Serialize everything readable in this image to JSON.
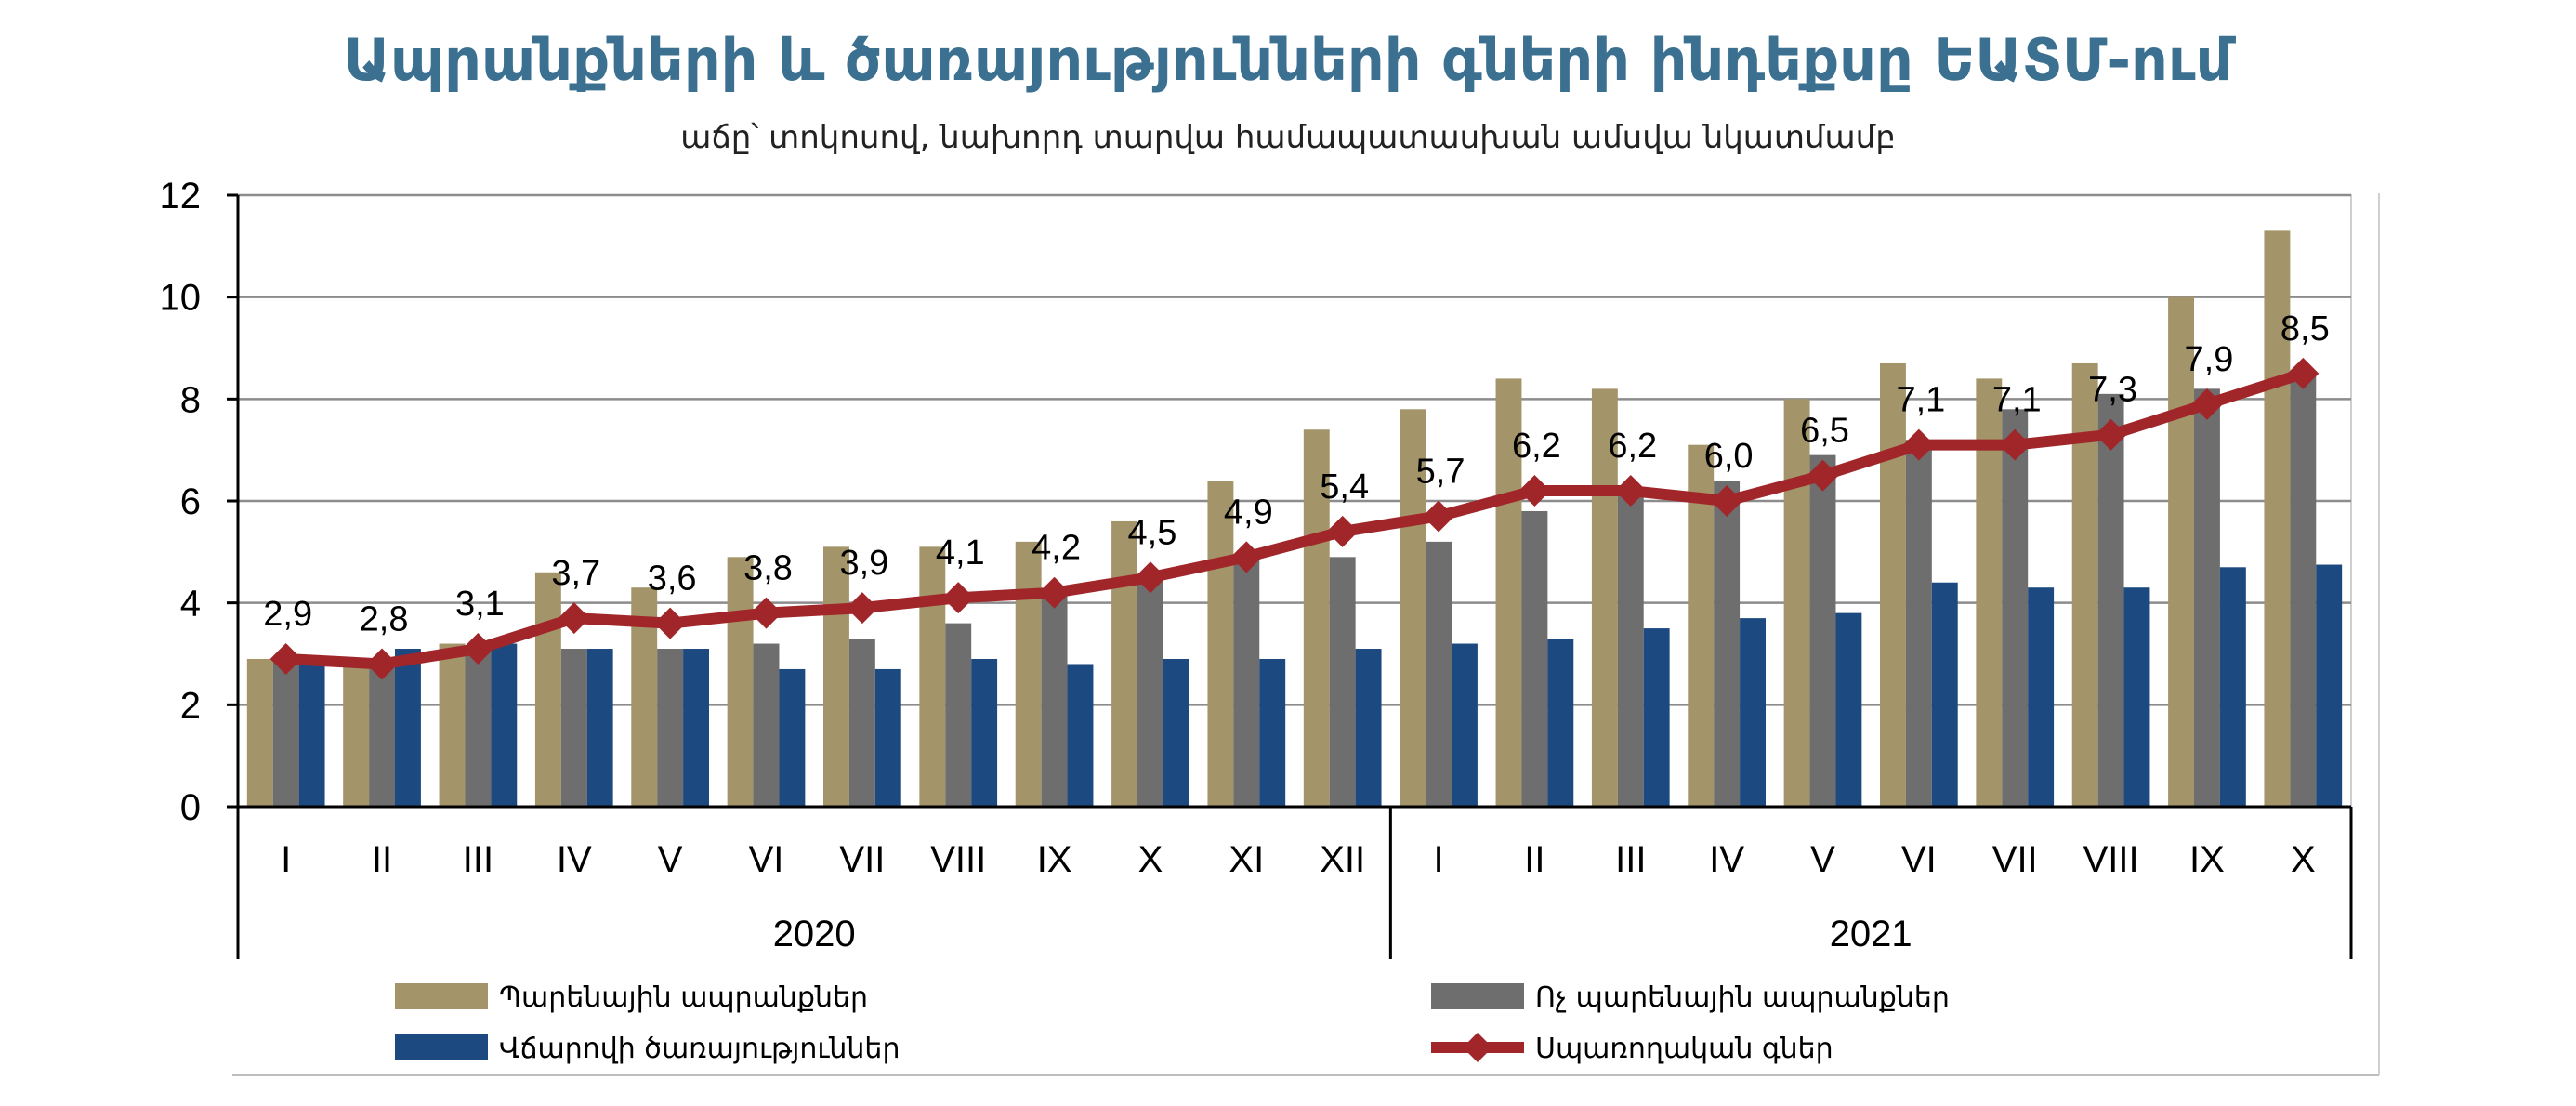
{
  "chart_data": {
    "type": "bar",
    "title": "Ապրանքների և ծառայությունների գների ինդեքսը ԵԱՏՄ-ում",
    "subtitle": "աճը՝ տոկոսով, նախորդ տարվա համապատասխան ամսվա նկատմամբ",
    "categories": [
      "I",
      "II",
      "III",
      "IV",
      "V",
      "VI",
      "VII",
      "VIII",
      "IX",
      "X",
      "XI",
      "XII",
      "I",
      "II",
      "III",
      "IV",
      "V",
      "VI",
      "VII",
      "VIII",
      "IX",
      "X"
    ],
    "years": [
      {
        "label": "2020",
        "count": 12
      },
      {
        "label": "2021",
        "count": 10
      }
    ],
    "ylim": [
      0,
      12
    ],
    "yticks": [
      0,
      2,
      4,
      6,
      8,
      10,
      12
    ],
    "grid": true,
    "legend_position": "bottom",
    "series": [
      {
        "name": "Պարենային ապրանքներ",
        "kind": "bar",
        "color": "#a39469",
        "values": [
          2.9,
          2.8,
          3.2,
          4.6,
          4.3,
          4.9,
          5.1,
          5.1,
          5.2,
          5.6,
          6.4,
          7.4,
          7.8,
          8.4,
          8.2,
          7.1,
          8.0,
          8.7,
          8.4,
          8.7,
          10.0,
          11.3
        ]
      },
      {
        "name": "Ոչ պարենային ապրանքներ",
        "kind": "bar",
        "color": "#6e6e6e",
        "values": [
          2.9,
          2.8,
          3.1,
          3.1,
          3.1,
          3.2,
          3.3,
          3.6,
          4.2,
          4.5,
          4.9,
          4.9,
          5.2,
          5.8,
          6.2,
          6.4,
          6.9,
          7.2,
          7.8,
          8.1,
          8.2,
          8.5
        ]
      },
      {
        "name": "Վճարովի ծառայություններ",
        "kind": "bar",
        "color": "#1c4a80",
        "values": [
          2.8,
          3.1,
          3.2,
          3.1,
          3.1,
          2.7,
          2.7,
          2.9,
          2.8,
          2.9,
          2.9,
          3.1,
          3.2,
          3.3,
          3.5,
          3.7,
          3.8,
          4.4,
          4.3,
          4.3,
          4.7,
          4.75
        ]
      },
      {
        "name": "Սպառողական գներ",
        "kind": "line",
        "color": "#a1262a",
        "values": [
          2.9,
          2.8,
          3.1,
          3.7,
          3.6,
          3.8,
          3.9,
          4.1,
          4.2,
          4.5,
          4.9,
          5.4,
          5.7,
          6.2,
          6.2,
          6.0,
          6.5,
          7.1,
          7.1,
          7.3,
          7.9,
          8.5
        ],
        "labels": [
          "2,9",
          "2,8",
          "3,1",
          "3,7",
          "3,6",
          "3,8",
          "3,9",
          "4,1",
          "4,2",
          "4,5",
          "4,9",
          "5,4",
          "5,7",
          "6,2",
          "6,2",
          "6,0",
          "6,5",
          "7,1",
          "7,1",
          "7,3",
          "7,9",
          "8,5"
        ]
      }
    ]
  }
}
